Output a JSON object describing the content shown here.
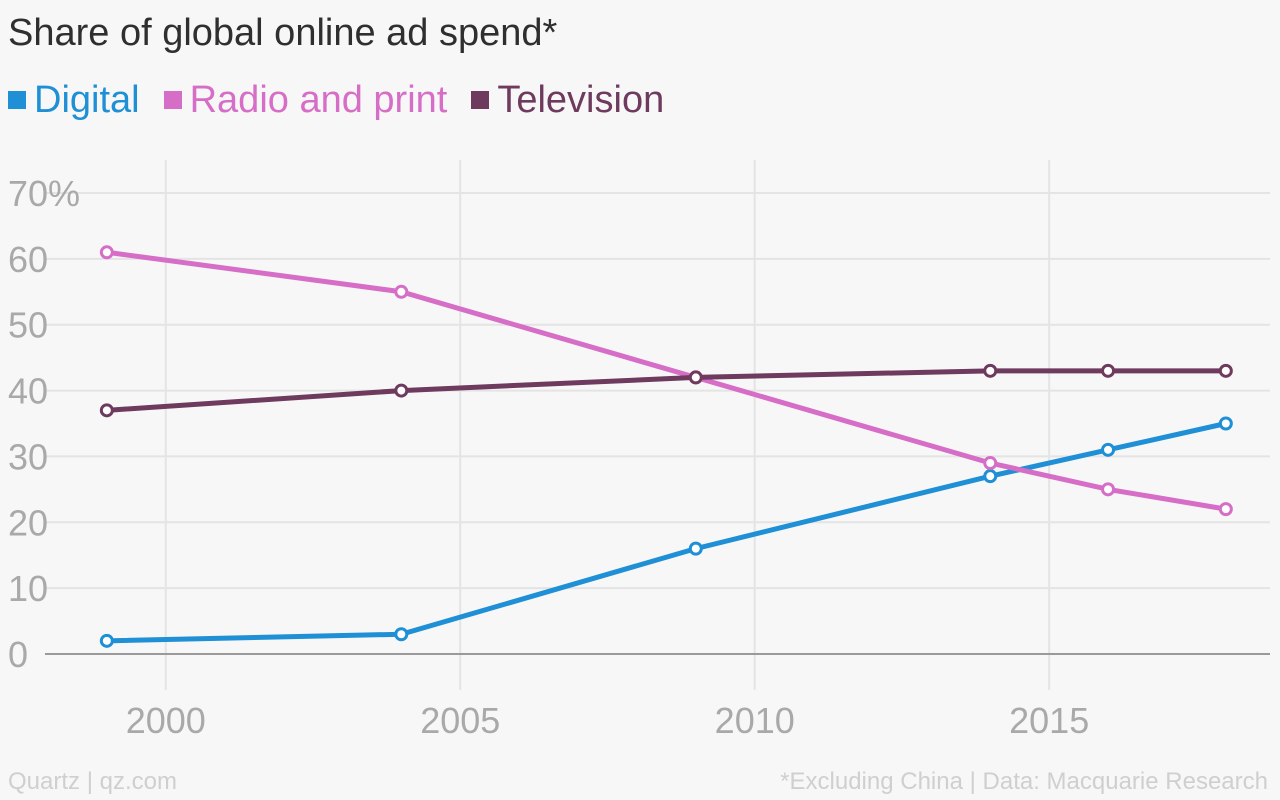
{
  "header": {
    "title": "Share of global online ad spend*"
  },
  "legend": {
    "items": [
      {
        "label": "Digital",
        "color": "#1f8fd6",
        "icon": "square-swatch-icon"
      },
      {
        "label": "Radio and print",
        "color": "#d66ec7",
        "icon": "square-swatch-icon"
      },
      {
        "label": "Television",
        "color": "#6e3a5d",
        "icon": "square-swatch-icon"
      }
    ]
  },
  "footer": {
    "left": "Quartz | qz.com",
    "right": "*Excluding China | Data: Macquarie Research"
  },
  "chart_data": {
    "type": "line",
    "title": "Share of global online ad spend*",
    "xlabel": "",
    "ylabel": "",
    "xlim": [
      1997.95,
      2018.75
    ],
    "ylim": [
      0,
      70
    ],
    "y_ticks": [
      {
        "value": 70,
        "label": "70%"
      },
      {
        "value": 60,
        "label": "60"
      },
      {
        "value": 50,
        "label": "50"
      },
      {
        "value": 40,
        "label": "40"
      },
      {
        "value": 30,
        "label": "30"
      },
      {
        "value": 20,
        "label": "20"
      },
      {
        "value": 10,
        "label": "10"
      },
      {
        "value": 0,
        "label": "0"
      }
    ],
    "x_ticks": [
      {
        "value": 2000,
        "label": "2000"
      },
      {
        "value": 2005,
        "label": "2005"
      },
      {
        "value": 2010,
        "label": "2010"
      },
      {
        "value": 2015,
        "label": "2015"
      }
    ],
    "grid": true,
    "legend_position": "top-left",
    "series": [
      {
        "name": "Digital",
        "color": "#1f8fd6",
        "points": [
          {
            "x": 1999,
            "y": 2
          },
          {
            "x": 2004,
            "y": 3
          },
          {
            "x": 2009,
            "y": 16
          },
          {
            "x": 2014,
            "y": 27
          },
          {
            "x": 2016,
            "y": 31
          },
          {
            "x": 2018,
            "y": 35
          }
        ]
      },
      {
        "name": "Radio and print",
        "color": "#d66ec7",
        "points": [
          {
            "x": 1999,
            "y": 61
          },
          {
            "x": 2004,
            "y": 55
          },
          {
            "x": 2009,
            "y": 42
          },
          {
            "x": 2014,
            "y": 29
          },
          {
            "x": 2016,
            "y": 25
          },
          {
            "x": 2018,
            "y": 22
          }
        ]
      },
      {
        "name": "Television",
        "color": "#6e3a5d",
        "points": [
          {
            "x": 1999,
            "y": 37
          },
          {
            "x": 2004,
            "y": 40
          },
          {
            "x": 2009,
            "y": 42
          },
          {
            "x": 2014,
            "y": 43
          },
          {
            "x": 2016,
            "y": 43
          },
          {
            "x": 2018,
            "y": 43
          }
        ]
      }
    ]
  }
}
